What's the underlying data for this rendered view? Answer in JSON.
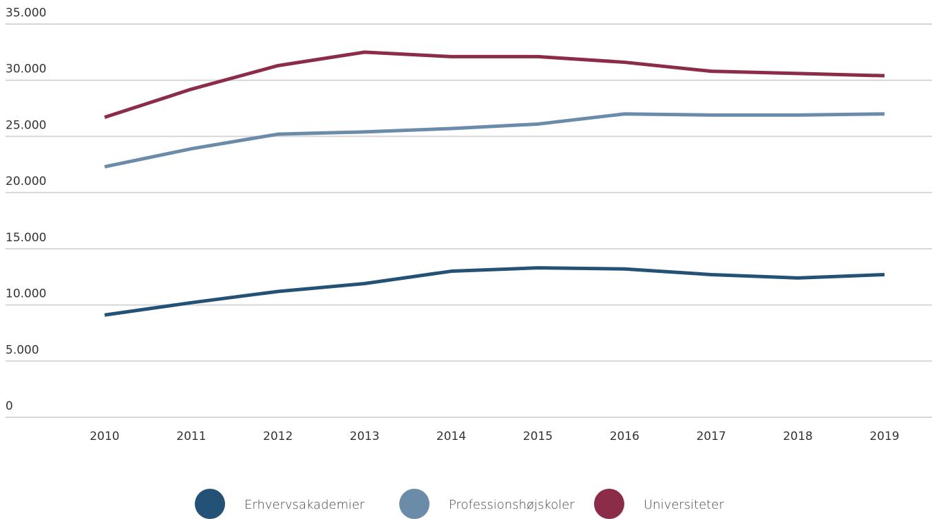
{
  "chart_data": {
    "type": "line",
    "categories": [
      "2010",
      "2011",
      "2012",
      "2013",
      "2014",
      "2015",
      "2016",
      "2017",
      "2018",
      "2019"
    ],
    "series": [
      {
        "name": "Erhvervsakademier",
        "color": "#245277",
        "values": [
          9100,
          10200,
          11200,
          11900,
          13000,
          13300,
          13200,
          12700,
          12400,
          12700
        ]
      },
      {
        "name": "Professionshøjskoler",
        "color": "#6a8ca8",
        "values": [
          22300,
          23900,
          25200,
          25400,
          25700,
          26100,
          27000,
          26900,
          26900,
          27000
        ]
      },
      {
        "name": "Universiteter",
        "color": "#8b2c48",
        "values": [
          26700,
          29200,
          31300,
          32500,
          32100,
          32100,
          31600,
          30800,
          30600,
          30400
        ]
      }
    ],
    "ylim": [
      0,
      35000
    ],
    "yticks": [
      0,
      {
        "value": 5000,
        "label": "5.000"
      },
      {
        "value": 10000,
        "label": "10.000"
      },
      {
        "value": 15000,
        "label": "15.000"
      },
      {
        "value": 20000,
        "label": "20.000"
      },
      {
        "value": 25000,
        "label": "25.000"
      },
      {
        "value": 30000,
        "label": "30.000"
      },
      {
        "value": 35000,
        "label": "35.000"
      }
    ],
    "grid": true,
    "legend": "bottom"
  }
}
